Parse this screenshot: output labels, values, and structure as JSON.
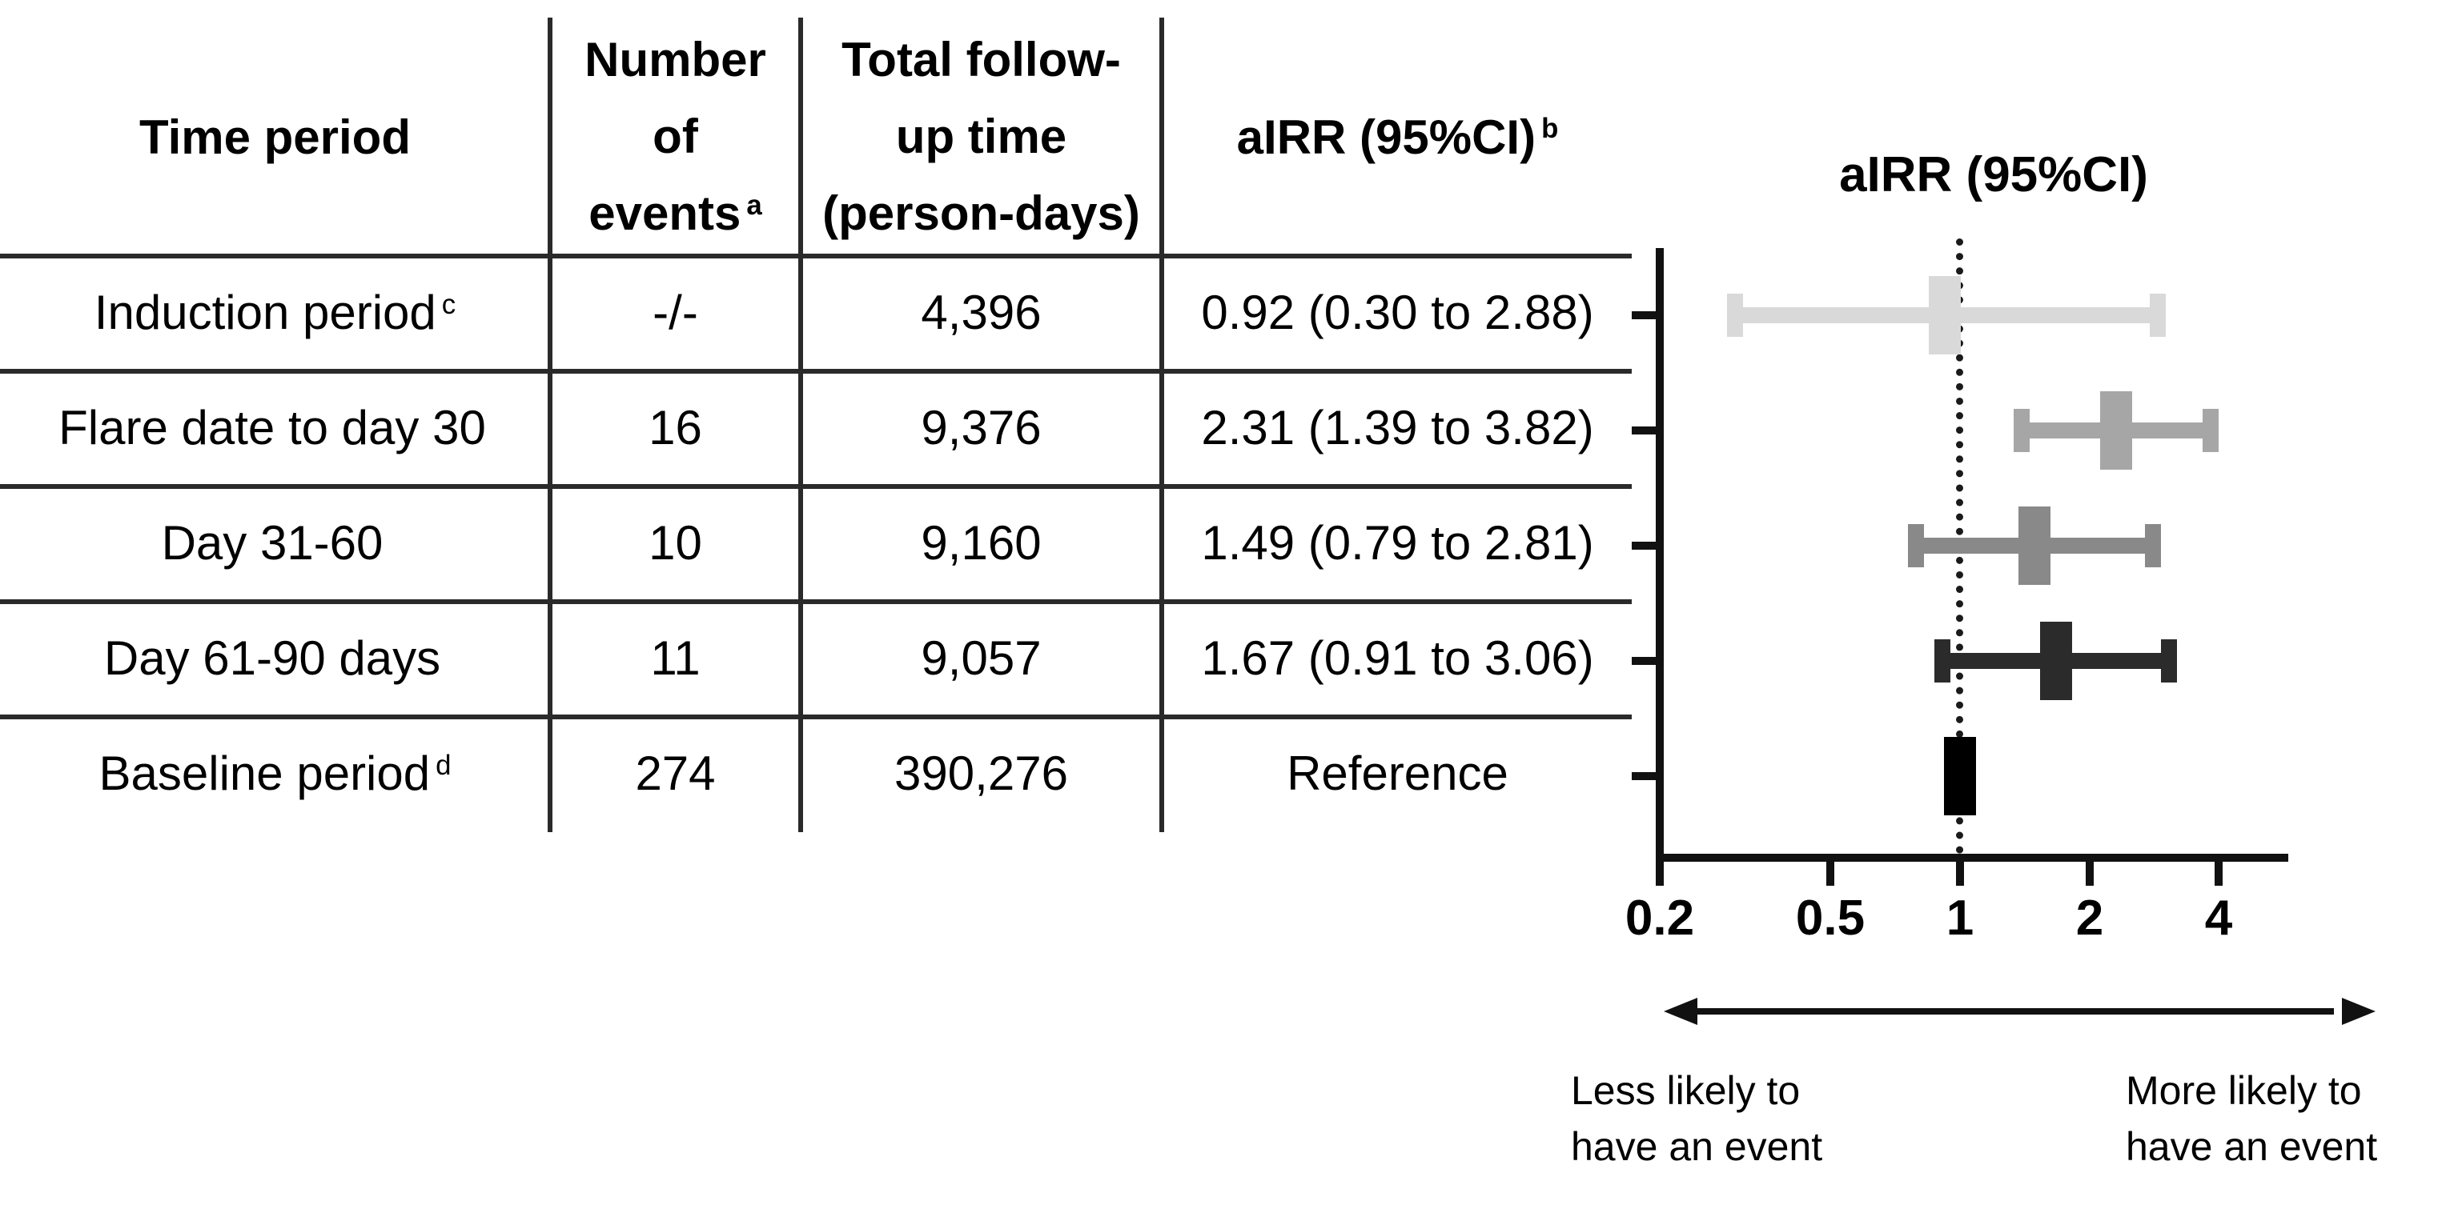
{
  "table": {
    "header": {
      "col1": "Time period",
      "col2_lines": [
        "Number",
        "of",
        "events"
      ],
      "col2_sup": "a",
      "col3_lines": [
        "Total follow-",
        "up time",
        "(person-days)"
      ],
      "col4": "aIRR (95%CI)",
      "col4_sup": "b"
    },
    "rows": [
      {
        "period": "Induction period",
        "period_sup": "c",
        "events": "-/-",
        "followup": "4,396",
        "airr": "0.92 (0.30 to 2.88)"
      },
      {
        "period": "Flare date to day 30",
        "period_sup": "",
        "events": "16",
        "followup": "9,376",
        "airr": "2.31 (1.39 to 3.82)"
      },
      {
        "period": "Day 31-60",
        "period_sup": "",
        "events": "10",
        "followup": "9,160",
        "airr": "1.49 (0.79 to 2.81)"
      },
      {
        "period": "Day 61-90 days",
        "period_sup": "",
        "events": "11",
        "followup": "9,057",
        "airr": "1.67 (0.91 to 3.06)"
      },
      {
        "period": "Baseline period",
        "period_sup": "d",
        "events": "274",
        "followup": "390,276",
        "airr": "Reference"
      }
    ]
  },
  "plot": {
    "title": "aIRR (95%CI)",
    "less_label_lines": [
      "Less likely to",
      "have an event"
    ],
    "more_label_lines": [
      "More likely to",
      "have an event"
    ]
  },
  "chart_data": {
    "type": "scatter",
    "subtype": "forest-plot",
    "title": "aIRR (95%CI)",
    "x_scale": "log",
    "xlim": [
      0.2,
      5.8
    ],
    "x_ticks": [
      0.2,
      0.5,
      1,
      2,
      4
    ],
    "reference_line": 1,
    "grid": false,
    "categories": [
      "Induction period",
      "Flare date to day 30",
      "Day 31-60",
      "Day 61-90 days",
      "Baseline period"
    ],
    "series": [
      {
        "name": "Induction period",
        "estimate": 0.92,
        "ci_low": 0.3,
        "ci_high": 2.88,
        "color": "#d9d9d9"
      },
      {
        "name": "Flare date to day 30",
        "estimate": 2.31,
        "ci_low": 1.39,
        "ci_high": 3.82,
        "color": "#a6a6a6"
      },
      {
        "name": "Day 31-60",
        "estimate": 1.49,
        "ci_low": 0.79,
        "ci_high": 2.81,
        "color": "#898989"
      },
      {
        "name": "Day 61-90 days",
        "estimate": 1.67,
        "ci_low": 0.91,
        "ci_high": 3.06,
        "color": "#2b2b2b"
      },
      {
        "name": "Baseline period (Reference)",
        "estimate": 1.0,
        "ci_low": null,
        "ci_high": null,
        "color": "#000000"
      }
    ],
    "annotations": {
      "left_arrow_label": "Less likely to have an event",
      "right_arrow_label": "More likely to have an event"
    },
    "colors": {
      "axis": "#111111",
      "table_lines": "#2a2a2a"
    }
  }
}
